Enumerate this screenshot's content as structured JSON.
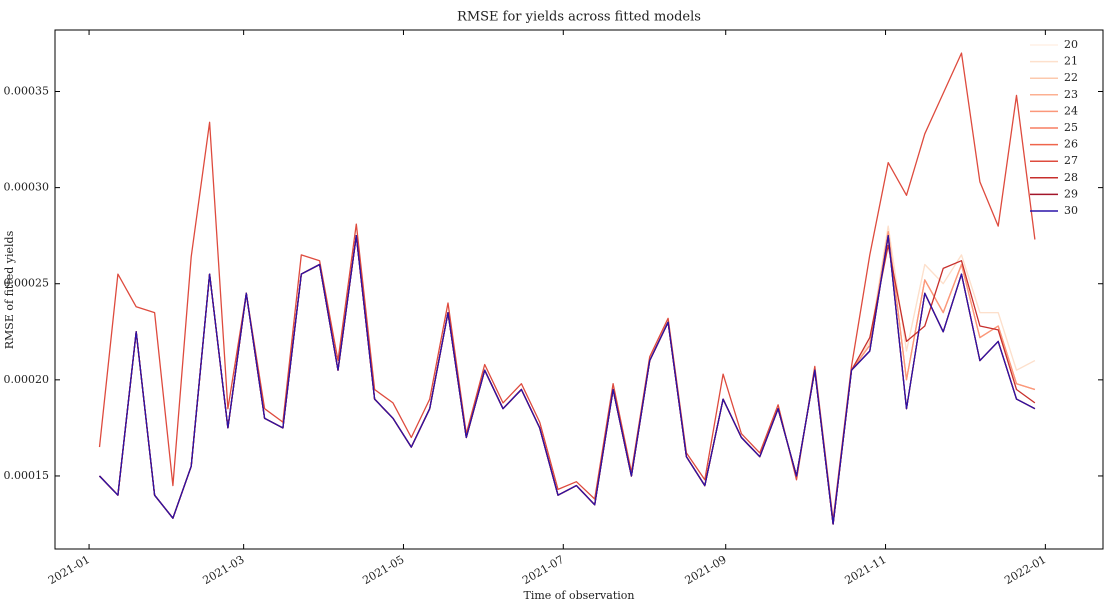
{
  "chart_data": {
    "type": "line",
    "title": "RMSE for yields across fitted models",
    "xlabel": "Time of observation",
    "ylabel": "RMSE of fitted yields",
    "x": [
      "2021-01-05",
      "2021-01-12",
      "2021-01-19",
      "2021-01-26",
      "2021-02-02",
      "2021-02-09",
      "2021-02-16",
      "2021-02-23",
      "2021-03-02",
      "2021-03-09",
      "2021-03-16",
      "2021-03-23",
      "2021-03-30",
      "2021-04-06",
      "2021-04-13",
      "2021-04-20",
      "2021-04-27",
      "2021-05-04",
      "2021-05-11",
      "2021-05-18",
      "2021-05-25",
      "2021-06-01",
      "2021-06-08",
      "2021-06-15",
      "2021-06-22",
      "2021-06-29",
      "2021-07-06",
      "2021-07-13",
      "2021-07-20",
      "2021-07-27",
      "2021-08-03",
      "2021-08-10",
      "2021-08-17",
      "2021-08-24",
      "2021-08-31",
      "2021-09-07",
      "2021-09-14",
      "2021-09-21",
      "2021-09-28",
      "2021-10-05",
      "2021-10-12",
      "2021-10-19",
      "2021-10-26",
      "2021-11-02",
      "2021-11-09",
      "2021-11-16",
      "2021-11-23",
      "2021-11-30",
      "2021-12-07",
      "2021-12-14",
      "2021-12-21",
      "2021-12-28"
    ],
    "xlim": [
      "2020-12-19",
      "2022-01-23"
    ],
    "xticks": [
      {
        "value": "2021-01-01",
        "label": "2021-01"
      },
      {
        "value": "2021-03-01",
        "label": "2021-03"
      },
      {
        "value": "2021-05-01",
        "label": "2021-05"
      },
      {
        "value": "2021-07-01",
        "label": "2021-07"
      },
      {
        "value": "2021-09-01",
        "label": "2021-09"
      },
      {
        "value": "2021-11-01",
        "label": "2021-11"
      },
      {
        "value": "2022-01-01",
        "label": "2022-01"
      }
    ],
    "ylim": [
      0.000112,
      0.000382
    ],
    "yticks": [
      {
        "value": 0.00015,
        "label": "0.00015"
      },
      {
        "value": 0.0002,
        "label": "0.00020"
      },
      {
        "value": 0.00025,
        "label": "0.00025"
      },
      {
        "value": 0.0003,
        "label": "0.00030"
      },
      {
        "value": 0.00035,
        "label": "0.00035"
      }
    ],
    "grid": false,
    "legend": "upper right",
    "series": [
      {
        "name": "20",
        "color": "#fff0e6",
        "values": [
          0.00015,
          0.00014,
          0.000225,
          0.00014,
          0.000128,
          0.000155,
          0.000255,
          0.000175,
          0.000245,
          0.00018,
          0.000175,
          0.000255,
          0.00026,
          0.000205,
          0.000275,
          0.00019,
          0.00018,
          0.000165,
          0.000185,
          0.000235,
          0.00017,
          0.000205,
          0.000185,
          0.000195,
          0.000175,
          0.00014,
          0.000145,
          0.000135,
          0.000195,
          0.00015,
          0.00021,
          0.00023,
          0.00016,
          0.000145,
          0.00019,
          0.00017,
          0.00016,
          0.000185,
          0.00015,
          0.000205,
          0.000125,
          0.000205,
          0.00022,
          0.00028,
          0.000215,
          0.00026,
          0.00025,
          0.000265,
          0.000235,
          0.000235,
          0.000205,
          0.00021
        ]
      },
      {
        "name": "21",
        "color": "#fde0cc",
        "values": [
          0.00015,
          0.00014,
          0.000225,
          0.00014,
          0.000128,
          0.000155,
          0.000255,
          0.000175,
          0.000245,
          0.00018,
          0.000175,
          0.000255,
          0.00026,
          0.000205,
          0.000275,
          0.00019,
          0.00018,
          0.000165,
          0.000185,
          0.000235,
          0.00017,
          0.000205,
          0.000185,
          0.000195,
          0.000175,
          0.00014,
          0.000145,
          0.000135,
          0.000195,
          0.00015,
          0.00021,
          0.00023,
          0.00016,
          0.000145,
          0.00019,
          0.00017,
          0.00016,
          0.000185,
          0.00015,
          0.000205,
          0.000125,
          0.000205,
          0.00022,
          0.00028,
          0.000215,
          0.00026,
          0.00025,
          0.000265,
          0.000235,
          0.000235,
          0.000205,
          0.00021
        ]
      },
      {
        "name": "22",
        "color": "#fcc9ad",
        "values": [
          0.00015,
          0.00014,
          0.000225,
          0.00014,
          0.000128,
          0.000155,
          0.000255,
          0.000175,
          0.000245,
          0.00018,
          0.000175,
          0.000255,
          0.00026,
          0.000205,
          0.000275,
          0.00019,
          0.00018,
          0.000165,
          0.000185,
          0.000235,
          0.00017,
          0.000205,
          0.000185,
          0.000195,
          0.000175,
          0.00014,
          0.000145,
          0.000135,
          0.000195,
          0.00015,
          0.00021,
          0.00023,
          0.00016,
          0.000145,
          0.00019,
          0.00017,
          0.00016,
          0.000185,
          0.00015,
          0.000205,
          0.000125,
          0.000205,
          0.000218,
          0.000277,
          0.0002,
          0.000252,
          0.000235,
          0.00026,
          0.000222,
          0.000228,
          0.000198,
          0.000195
        ]
      },
      {
        "name": "23",
        "color": "#fcb092",
        "values": [
          0.00015,
          0.00014,
          0.000225,
          0.00014,
          0.000128,
          0.000155,
          0.000255,
          0.000175,
          0.000245,
          0.00018,
          0.000175,
          0.000255,
          0.00026,
          0.000205,
          0.000275,
          0.00019,
          0.00018,
          0.000165,
          0.000185,
          0.000235,
          0.00017,
          0.000205,
          0.000185,
          0.000195,
          0.000175,
          0.00014,
          0.000145,
          0.000135,
          0.000195,
          0.00015,
          0.00021,
          0.00023,
          0.00016,
          0.000145,
          0.00019,
          0.00017,
          0.00016,
          0.000185,
          0.00015,
          0.000205,
          0.000125,
          0.000205,
          0.000218,
          0.000277,
          0.0002,
          0.000252,
          0.000235,
          0.00026,
          0.000222,
          0.000228,
          0.000198,
          0.000195
        ]
      },
      {
        "name": "24",
        "color": "#fb977a",
        "values": [
          0.00015,
          0.00014,
          0.000225,
          0.00014,
          0.000128,
          0.000155,
          0.000255,
          0.000175,
          0.000245,
          0.00018,
          0.000175,
          0.000255,
          0.00026,
          0.000205,
          0.000275,
          0.00019,
          0.00018,
          0.000165,
          0.000185,
          0.000235,
          0.00017,
          0.000205,
          0.000185,
          0.000195,
          0.000175,
          0.00014,
          0.000145,
          0.000135,
          0.000195,
          0.00015,
          0.00021,
          0.00023,
          0.00016,
          0.000145,
          0.00019,
          0.00017,
          0.00016,
          0.000185,
          0.00015,
          0.000205,
          0.000125,
          0.000205,
          0.000218,
          0.000277,
          0.0002,
          0.000252,
          0.000235,
          0.00026,
          0.000222,
          0.000228,
          0.000198,
          0.000195
        ]
      },
      {
        "name": "25",
        "color": "#f77f62",
        "values": [
          0.00015,
          0.00014,
          0.000225,
          0.00014,
          0.000128,
          0.000155,
          0.000255,
          0.000175,
          0.000245,
          0.00018,
          0.000175,
          0.000255,
          0.00026,
          0.000205,
          0.000275,
          0.00019,
          0.00018,
          0.000165,
          0.000185,
          0.000235,
          0.00017,
          0.000205,
          0.000185,
          0.000195,
          0.000175,
          0.00014,
          0.000145,
          0.000135,
          0.000195,
          0.00015,
          0.00021,
          0.00023,
          0.00016,
          0.000145,
          0.00019,
          0.00017,
          0.00016,
          0.000185,
          0.00015,
          0.000205,
          0.000125,
          0.000205,
          0.000215,
          0.000275,
          0.000185,
          0.000245,
          0.000225,
          0.000255,
          0.00021,
          0.00022,
          0.00019,
          0.000185
        ]
      },
      {
        "name": "26",
        "color": "#ef654b",
        "values": [
          0.00015,
          0.00014,
          0.000225,
          0.00014,
          0.000128,
          0.000155,
          0.000255,
          0.000175,
          0.000245,
          0.00018,
          0.000175,
          0.000255,
          0.00026,
          0.000205,
          0.000275,
          0.00019,
          0.00018,
          0.000165,
          0.000185,
          0.000235,
          0.00017,
          0.000205,
          0.000185,
          0.000195,
          0.000175,
          0.00014,
          0.000145,
          0.000135,
          0.000195,
          0.00015,
          0.00021,
          0.00023,
          0.00016,
          0.000145,
          0.00019,
          0.00017,
          0.00016,
          0.000185,
          0.00015,
          0.000205,
          0.000125,
          0.000205,
          0.000215,
          0.000275,
          0.000185,
          0.000245,
          0.000225,
          0.000255,
          0.00021,
          0.00022,
          0.00019,
          0.000185
        ]
      },
      {
        "name": "27",
        "color": "#de4b3e",
        "values": [
          0.000165,
          0.000255,
          0.000238,
          0.000235,
          0.000145,
          0.000264,
          0.000334,
          0.000185,
          0.000245,
          0.000185,
          0.000178,
          0.000265,
          0.000262,
          0.00021,
          0.000281,
          0.000195,
          0.000188,
          0.00017,
          0.00019,
          0.00024,
          0.000172,
          0.000208,
          0.000188,
          0.000198,
          0.000178,
          0.000143,
          0.000147,
          0.000138,
          0.000198,
          0.000152,
          0.000212,
          0.000232,
          0.000162,
          0.000148,
          0.000203,
          0.000172,
          0.000162,
          0.000187,
          0.000148,
          0.000207,
          0.000127,
          0.000207,
          0.000265,
          0.000313,
          0.000296,
          0.000328,
          0.000349,
          0.00037,
          0.000303,
          0.00028,
          0.000348,
          0.000273
        ]
      },
      {
        "name": "28",
        "color": "#c72f2c",
        "values": [
          0.00015,
          0.00014,
          0.000225,
          0.00014,
          0.000128,
          0.000155,
          0.000255,
          0.000175,
          0.000245,
          0.00018,
          0.000175,
          0.000255,
          0.00026,
          0.000205,
          0.000275,
          0.00019,
          0.00018,
          0.000165,
          0.000185,
          0.000235,
          0.00017,
          0.000205,
          0.000185,
          0.000195,
          0.000175,
          0.00014,
          0.000145,
          0.000135,
          0.000195,
          0.00015,
          0.00021,
          0.00023,
          0.00016,
          0.000145,
          0.00019,
          0.00017,
          0.00016,
          0.000185,
          0.00015,
          0.000205,
          0.000125,
          0.000205,
          0.000222,
          0.00027,
          0.00022,
          0.000228,
          0.000258,
          0.000262,
          0.000228,
          0.000226,
          0.000195,
          0.000188
        ]
      },
      {
        "name": "29",
        "color": "#a3152a",
        "values": [
          0.00015,
          0.00014,
          0.000225,
          0.00014,
          0.000128,
          0.000155,
          0.000255,
          0.000175,
          0.000245,
          0.00018,
          0.000175,
          0.000255,
          0.00026,
          0.000205,
          0.000275,
          0.00019,
          0.00018,
          0.000165,
          0.000185,
          0.000235,
          0.00017,
          0.000205,
          0.000185,
          0.000195,
          0.000175,
          0.00014,
          0.000145,
          0.000135,
          0.000195,
          0.00015,
          0.00021,
          0.00023,
          0.00016,
          0.000145,
          0.00019,
          0.00017,
          0.00016,
          0.000185,
          0.00015,
          0.000205,
          0.000125,
          0.000205,
          0.000215,
          0.000275,
          0.000185,
          0.000245,
          0.000225,
          0.000255,
          0.00021,
          0.00022,
          0.00019,
          0.000185
        ]
      },
      {
        "name": "30",
        "color": "#2a14a8",
        "values": [
          0.00015,
          0.00014,
          0.000225,
          0.00014,
          0.000128,
          0.000155,
          0.000255,
          0.000175,
          0.000245,
          0.00018,
          0.000175,
          0.000255,
          0.00026,
          0.000205,
          0.000275,
          0.00019,
          0.00018,
          0.000165,
          0.000185,
          0.000235,
          0.00017,
          0.000205,
          0.000185,
          0.000195,
          0.000175,
          0.00014,
          0.000145,
          0.000135,
          0.000195,
          0.00015,
          0.00021,
          0.00023,
          0.00016,
          0.000145,
          0.00019,
          0.00017,
          0.00016,
          0.000185,
          0.00015,
          0.000205,
          0.000125,
          0.000205,
          0.000215,
          0.000275,
          0.000185,
          0.000245,
          0.000225,
          0.000255,
          0.00021,
          0.00022,
          0.00019,
          0.000185
        ]
      }
    ]
  }
}
